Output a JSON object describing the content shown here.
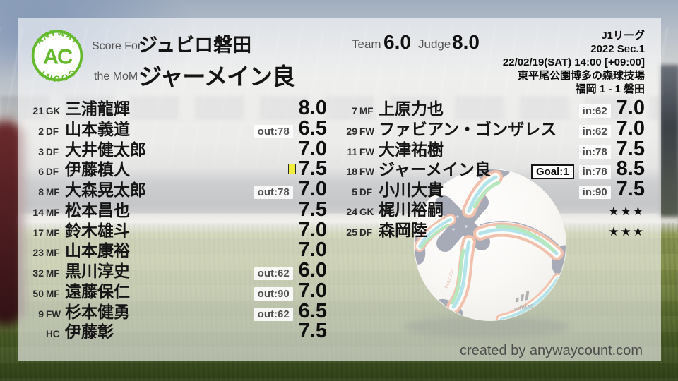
{
  "logo": {
    "arc_top": "ANYWAY",
    "center": "AC",
    "arc_bottom": "COUNT"
  },
  "header": {
    "score_for_label": "Score For",
    "team_name": "ジュビロ磐田",
    "mom_label": "the MoM",
    "mom_name": "ジャーメイン良",
    "team_score_label": "Team",
    "team_score": "6.0",
    "judge_score_label": "Judge",
    "judge_score": "8.0"
  },
  "match_info": {
    "league": "J1リーグ",
    "season": "2022 Sec.1",
    "kickoff": "22/02/19(SAT) 14:00 [+09:00]",
    "venue": "東平尾公園博多の森球技場",
    "result": "福岡 1 - 1 磐田"
  },
  "left_column": {
    "players": [
      {
        "num": "21",
        "pos": "GK",
        "name": "三浦龍輝",
        "rating": "8.0"
      },
      {
        "num": "2",
        "pos": "DF",
        "name": "山本義道",
        "sub": "out:78",
        "rating": "6.5"
      },
      {
        "num": "3",
        "pos": "DF",
        "name": "大井健太郎",
        "rating": "7.0"
      },
      {
        "num": "6",
        "pos": "DF",
        "name": "伊藤槙人",
        "card": "yellow",
        "rating": "7.5"
      },
      {
        "num": "8",
        "pos": "MF",
        "name": "大森晃太郎",
        "sub": "out:78",
        "rating": "7.0"
      },
      {
        "num": "14",
        "pos": "MF",
        "name": "松本昌也",
        "rating": "7.5"
      },
      {
        "num": "17",
        "pos": "MF",
        "name": "鈴木雄斗",
        "rating": "7.0"
      },
      {
        "num": "23",
        "pos": "MF",
        "name": "山本康裕",
        "rating": "7.0"
      },
      {
        "num": "32",
        "pos": "MF",
        "name": "黒川淳史",
        "sub": "out:62",
        "rating": "6.0"
      },
      {
        "num": "50",
        "pos": "MF",
        "name": "遠藤保仁",
        "sub": "out:90",
        "rating": "7.0"
      },
      {
        "num": "9",
        "pos": "FW",
        "name": "杉本健勇",
        "sub": "out:62",
        "rating": "6.5"
      },
      {
        "num": "",
        "pos": "HC",
        "name": "伊藤彰",
        "rating": "7.5"
      }
    ]
  },
  "right_column": {
    "players": [
      {
        "num": "7",
        "pos": "MF",
        "name": "上原力也",
        "sub": "in:62",
        "rating": "7.0"
      },
      {
        "num": "29",
        "pos": "FW",
        "name": "ファビアン・ゴンザレス",
        "sub": "in:62",
        "rating": "7.0"
      },
      {
        "num": "11",
        "pos": "FW",
        "name": "大津祐樹",
        "sub": "in:78",
        "rating": "7.5"
      },
      {
        "num": "18",
        "pos": "FW",
        "name": "ジャーメイン良",
        "goal": "Goal:1",
        "sub": "in:78",
        "rating": "8.5"
      },
      {
        "num": "5",
        "pos": "DF",
        "name": "小川大貴",
        "sub": "in:90",
        "rating": "7.5"
      },
      {
        "num": "24",
        "pos": "GK",
        "name": "梶川裕嗣",
        "rating": "★★★",
        "stars": true
      },
      {
        "num": "25",
        "pos": "DF",
        "name": "森岡陸",
        "rating": "★★★",
        "stars": true
      }
    ]
  },
  "photo": {
    "ball_brand": "adidas",
    "ball_model": "brazuca"
  },
  "footer": {
    "credit": "created by anywaycount.com"
  },
  "colors": {
    "logo_green": "#64b92c",
    "card_yellow": "#f0ed3c",
    "ball_orange": "#df6434",
    "ball_teal": "#41bccd",
    "ball_green": "#49c25d",
    "ball_navy": "#252b4d"
  }
}
